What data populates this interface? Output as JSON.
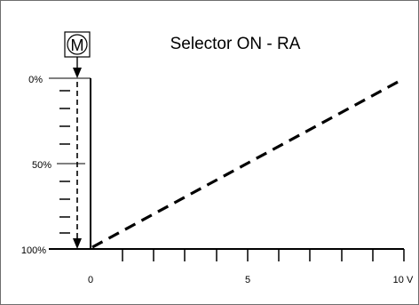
{
  "diagram": {
    "title": "Selector ON - RA",
    "motor_symbol": "M",
    "y_labels": [
      "0%",
      "50%",
      "100%"
    ],
    "x_labels": [
      "0",
      "5",
      "10 V"
    ],
    "line_colour": "#000000",
    "frame_colour": "#6e6e6e"
  }
}
